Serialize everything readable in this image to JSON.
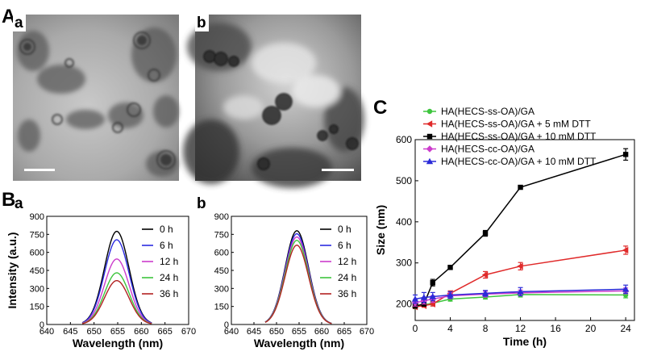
{
  "figure": {
    "panel_A": {
      "letter": "A",
      "sub_a": "a",
      "sub_b": "b"
    },
    "panel_B": {
      "letter": "B"
    },
    "panel_C": {
      "letter": "C"
    }
  },
  "colors": {
    "black": "#000000",
    "blue": "#2b2be0",
    "magenta": "#cc3ccc",
    "green": "#3ec53e",
    "red": "#d42a2a",
    "violet": "#3a2ad8"
  },
  "chart_data": [
    {
      "id": "B-a",
      "type": "line",
      "panel_label": "a",
      "xlabel": "Wavelength (nm)",
      "ylabel": "Intensity (a.u.)",
      "xlim": [
        640,
        670
      ],
      "ylim": [
        0,
        900
      ],
      "xticks": [
        "640",
        "645",
        "650",
        "655",
        "660",
        "665",
        "670"
      ],
      "yticks": [
        "0",
        "150",
        "300",
        "450",
        "600",
        "750",
        "900"
      ],
      "peak_x": 654.8,
      "series": [
        {
          "name": "0 h",
          "color": "#000000",
          "peak": 775
        },
        {
          "name": "6 h",
          "color": "#2b2be0",
          "peak": 705
        },
        {
          "name": "12 h",
          "color": "#cc3ccc",
          "peak": 545
        },
        {
          "name": "24 h",
          "color": "#3ec53e",
          "peak": 430
        },
        {
          "name": "36 h",
          "color": "#b22222",
          "peak": 365
        }
      ]
    },
    {
      "id": "B-b",
      "type": "line",
      "panel_label": "b",
      "xlabel": "Wavelength (nm)",
      "ylabel": "",
      "xlim": [
        640,
        670
      ],
      "ylim": [
        0,
        900
      ],
      "xticks": [
        "640",
        "645",
        "650",
        "655",
        "660",
        "665",
        "670"
      ],
      "yticks": [
        "0",
        "150",
        "300",
        "450",
        "600",
        "750",
        "900"
      ],
      "peak_x": 654.5,
      "series": [
        {
          "name": "0 h",
          "color": "#000000",
          "peak": 780
        },
        {
          "name": "6 h",
          "color": "#2b2be0",
          "peak": 755
        },
        {
          "name": "12 h",
          "color": "#cc3ccc",
          "peak": 728
        },
        {
          "name": "24 h",
          "color": "#3ec53e",
          "peak": 700
        },
        {
          "name": "36 h",
          "color": "#b22222",
          "peak": 660
        }
      ]
    },
    {
      "id": "C",
      "type": "line",
      "xlabel": "Time (h)",
      "ylabel": "Size (nm)",
      "xlim": [
        0,
        25
      ],
      "ylim": [
        160,
        600
      ],
      "xticks": [
        "0",
        "4",
        "8",
        "12",
        "16",
        "20",
        "24"
      ],
      "yticks": [
        "200",
        "300",
        "400",
        "500",
        "600"
      ],
      "x": [
        0,
        1,
        2,
        4,
        8,
        12,
        24
      ],
      "series": [
        {
          "name": "HA(HECS-ss-OA)/GA",
          "color": "#3ec53e",
          "marker": "circle",
          "values": [
            193,
            198,
            202,
            212,
            217,
            223,
            222
          ],
          "err": [
            4,
            4,
            4,
            5,
            5,
            6,
            7
          ]
        },
        {
          "name": "HA(HECS-ss-OA)/GA + 5 mM DTT",
          "color": "#e02a2a",
          "marker": "triangle-left",
          "values": [
            193,
            196,
            200,
            226,
            271,
            292,
            331
          ],
          "err": [
            4,
            4,
            5,
            6,
            8,
            9,
            10
          ]
        },
        {
          "name": "HA(HECS-ss-OA)/GA + 10 mM DTT",
          "color": "#000000",
          "marker": "square",
          "values": [
            195,
            200,
            252,
            289,
            372,
            484,
            564
          ],
          "err": [
            4,
            5,
            8,
            5,
            7,
            4,
            14
          ]
        },
        {
          "name": "HA(HECS-cc-OA)/GA",
          "color": "#cc3ccc",
          "marker": "diamond",
          "values": [
            203,
            208,
            212,
            220,
            224,
            227,
            232
          ],
          "err": [
            8,
            8,
            8,
            7,
            7,
            7,
            7
          ]
        },
        {
          "name": "HA(HECS-cc-OA)/GA + 10 mM DTT",
          "color": "#2b2bd8",
          "marker": "triangle",
          "values": [
            212,
            216,
            218,
            222,
            226,
            230,
            236
          ],
          "err": [
            10,
            12,
            10,
            8,
            7,
            10,
            10
          ]
        }
      ]
    }
  ]
}
